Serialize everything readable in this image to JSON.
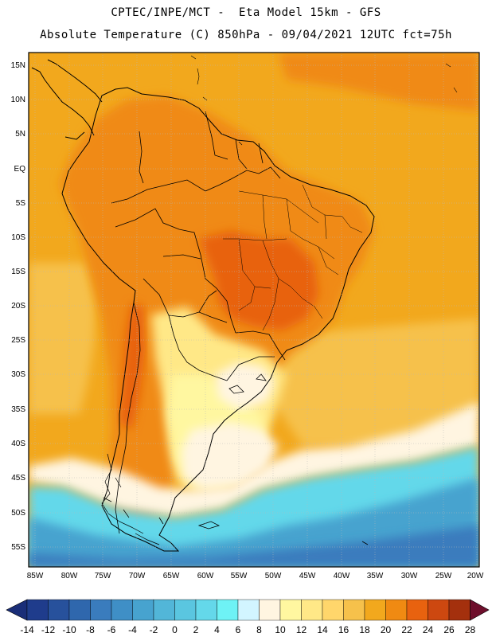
{
  "title": {
    "line1": "CPTEC/INPE/MCT -  Eta Model 15km - GFS",
    "line2": "Absolute Temperature (C) 850hPa - 09/04/2021 12UTC fct=75h"
  },
  "map": {
    "lat_labels": [
      "15N",
      "10N",
      "5N",
      "EQ",
      "5S",
      "10S",
      "15S",
      "20S",
      "25S",
      "30S",
      "35S",
      "40S",
      "45S",
      "50S",
      "55S"
    ],
    "lon_labels": [
      "85W",
      "80W",
      "75W",
      "70W",
      "65W",
      "60W",
      "55W",
      "50W",
      "45W",
      "40W",
      "35W",
      "30W",
      "25W",
      "20W"
    ]
  },
  "colorbar": {
    "labels": [
      "-14",
      "-12",
      "-10",
      "-8",
      "-6",
      "-4",
      "-2",
      "0",
      "2",
      "4",
      "6",
      "8",
      "10",
      "12",
      "14",
      "16",
      "18",
      "20",
      "22",
      "24",
      "26",
      "28"
    ],
    "colors": [
      "#1f3c8c",
      "#27519c",
      "#2f67ad",
      "#3a7cbd",
      "#3f8fc6",
      "#47a3cf",
      "#52b6d8",
      "#5ac6e0",
      "#64d8ea",
      "#6ef2f5",
      "#d2f5ff",
      "#fff5e1",
      "#fff7a0",
      "#ffe887",
      "#ffd66b",
      "#f6c14b",
      "#f2a81d",
      "#f08a12",
      "#e8620f",
      "#cd4810",
      "#a4300d",
      "#7a1b0e"
    ],
    "under_color": "#1a2e78",
    "over_color": "#6e0f2c"
  },
  "field_colors": {
    "ocean_warm": "#f2a81d",
    "land_hot": "#f08a12",
    "core_hot": "#e8620f",
    "mild": "#f6c14b",
    "cool": "#ffe887",
    "pale": "#fff7a0",
    "white": "#fff5e1",
    "cyan": "#64d8ea",
    "blue": "#47a3cf",
    "deep": "#3a7cbd"
  }
}
